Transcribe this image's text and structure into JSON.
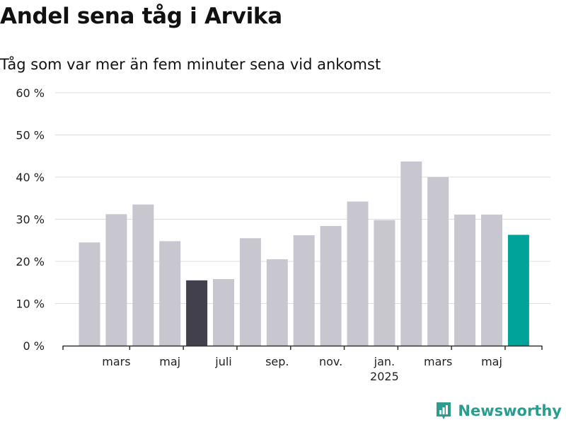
{
  "title": "Andel sena tåg i Arvika",
  "subtitle": "Tåg som var mer än fem minuter sena vid ankomst",
  "brand": {
    "name": "Newsworthy",
    "icon": "newsworthy-logo-icon",
    "color": "#2a9d8f"
  },
  "colors": {
    "default_bar": "#c8c7d0",
    "highlight_low": "#42404d",
    "latest": "#00a39a",
    "grid": "#dddddd",
    "axis": "#333333"
  },
  "chart_data": {
    "type": "bar",
    "title": "Andel sena tåg i Arvika",
    "subtitle": "Tåg som var mer än fem minuter sena vid ankomst",
    "xlabel": "",
    "ylabel": "",
    "ylim": [
      0,
      60
    ],
    "yticks": [
      0,
      10,
      20,
      30,
      40,
      50,
      60
    ],
    "ytick_labels": [
      "0 %",
      "10 %",
      "20 %",
      "30 %",
      "40 %",
      "50 %",
      "60 %"
    ],
    "grid": true,
    "legend": "none",
    "categories": [
      "2024-02",
      "2024-03",
      "2024-04",
      "2024-05",
      "2024-06",
      "2024-07",
      "2024-08",
      "2024-09",
      "2024-10",
      "2024-11",
      "2024-12",
      "2025-01",
      "2025-02",
      "2025-03",
      "2025-04",
      "2025-05",
      "2025-06"
    ],
    "values": [
      24.5,
      31.2,
      33.5,
      24.8,
      15.5,
      15.8,
      25.5,
      20.5,
      26.2,
      28.4,
      34.2,
      29.8,
      43.7,
      40.0,
      31.1,
      31.1,
      26.3
    ],
    "bar_colors": [
      "#c8c7d0",
      "#c8c7d0",
      "#c8c7d0",
      "#c8c7d0",
      "#42404d",
      "#c8c7d0",
      "#c8c7d0",
      "#c8c7d0",
      "#c8c7d0",
      "#c8c7d0",
      "#c8c7d0",
      "#c8c7d0",
      "#c8c7d0",
      "#c8c7d0",
      "#c8c7d0",
      "#c8c7d0",
      "#00a39a"
    ],
    "x_tick_labels": [
      {
        "at": 1,
        "label": "mars"
      },
      {
        "at": 3,
        "label": "maj"
      },
      {
        "at": 5,
        "label": "juli"
      },
      {
        "at": 7,
        "label": "sep."
      },
      {
        "at": 9,
        "label": "nov."
      },
      {
        "at": 11,
        "label": "jan.",
        "sublabel": "2025"
      },
      {
        "at": 13,
        "label": "mars"
      },
      {
        "at": 15,
        "label": "maj"
      }
    ]
  }
}
